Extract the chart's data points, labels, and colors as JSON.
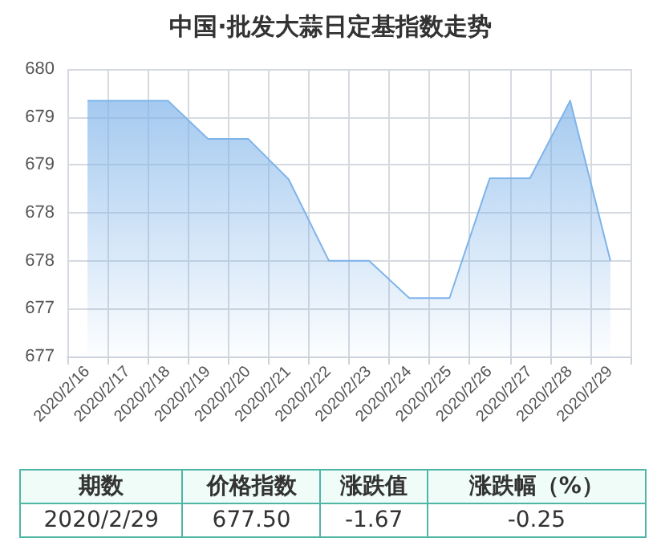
{
  "chart_data": {
    "type": "area",
    "title": "中国·批发大蒜日定基指数走势",
    "categories": [
      "2020/2/16",
      "2020/2/17",
      "2020/2/18",
      "2020/2/19",
      "2020/2/20",
      "2020/2/21",
      "2020/2/22",
      "2020/2/23",
      "2020/2/24",
      "2020/2/25",
      "2020/2/26",
      "2020/2/27",
      "2020/2/28",
      "2020/2/29"
    ],
    "series": [
      {
        "color": "#7eb3e9",
        "values": [
          679.17,
          679.17,
          679.17,
          678.77,
          678.77,
          678.35,
          677.5,
          677.5,
          677.11,
          677.11,
          678.36,
          678.36,
          679.17,
          677.5
        ]
      }
    ],
    "ylim": [
      676.5,
      679.5
    ],
    "yticks": [
      {
        "value": 676.5,
        "label": "677"
      },
      {
        "value": 677,
        "label": "677"
      },
      {
        "value": 677.5,
        "label": "678"
      },
      {
        "value": 678,
        "label": "678"
      },
      {
        "value": 678.5,
        "label": "679"
      },
      {
        "value": 679,
        "label": "679"
      },
      {
        "value": 679.5,
        "label": "680"
      }
    ],
    "grid": true,
    "annotations": [
      "期数",
      "价格指数",
      "涨跌值",
      "涨跌幅（%）",
      "2020/2/29",
      "677.50",
      "-1.67",
      "-0.25"
    ]
  }
}
